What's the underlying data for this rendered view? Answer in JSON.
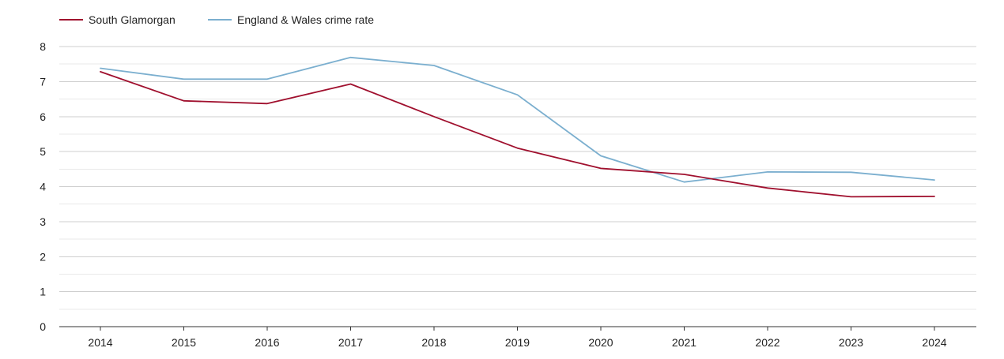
{
  "chart_data": {
    "type": "line",
    "title": "",
    "xlabel": "",
    "ylabel": "",
    "x": [
      "2014",
      "2015",
      "2016",
      "2017",
      "2018",
      "2019",
      "2020",
      "2021",
      "2022",
      "2023",
      "2024"
    ],
    "ylim": [
      0,
      8
    ],
    "yticks": [
      "0",
      "1",
      "2",
      "3",
      "4",
      "5",
      "6",
      "7",
      "8"
    ],
    "grid": true,
    "legend_position": "top-left",
    "series": [
      {
        "name": "South Glamorgan",
        "color": "#a0102e",
        "values": [
          7.28,
          6.45,
          6.37,
          6.93,
          6.0,
          5.1,
          4.52,
          4.35,
          3.96,
          3.71,
          3.72
        ]
      },
      {
        "name": "England & Wales crime rate",
        "color": "#7bafcf",
        "values": [
          7.38,
          7.07,
          7.07,
          7.69,
          7.46,
          6.62,
          4.88,
          4.13,
          4.42,
          4.41,
          4.19
        ]
      }
    ]
  }
}
